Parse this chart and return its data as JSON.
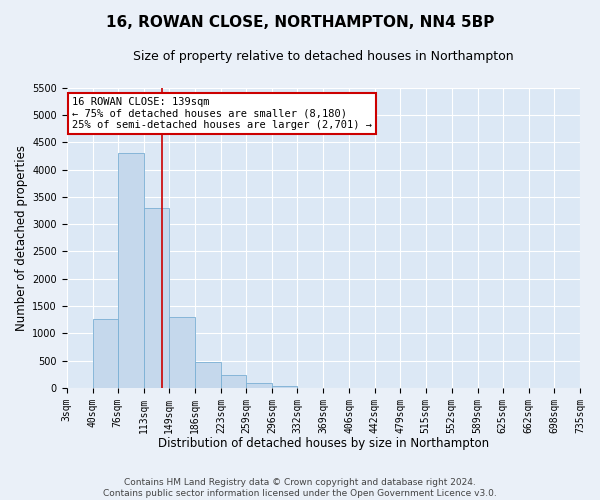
{
  "title": "16, ROWAN CLOSE, NORTHAMPTON, NN4 5BP",
  "subtitle": "Size of property relative to detached houses in Northampton",
  "xlabel": "Distribution of detached houses by size in Northampton",
  "ylabel": "Number of detached properties",
  "bin_labels": [
    "3sqm",
    "40sqm",
    "76sqm",
    "113sqm",
    "149sqm",
    "186sqm",
    "223sqm",
    "259sqm",
    "296sqm",
    "332sqm",
    "369sqm",
    "406sqm",
    "442sqm",
    "479sqm",
    "515sqm",
    "552sqm",
    "589sqm",
    "625sqm",
    "662sqm",
    "698sqm",
    "735sqm"
  ],
  "bar_values": [
    0,
    1270,
    4300,
    3290,
    1300,
    480,
    230,
    80,
    40,
    0,
    0,
    0,
    0,
    0,
    0,
    0,
    0,
    0,
    0,
    0
  ],
  "bin_edges": [
    3,
    40,
    76,
    113,
    149,
    186,
    223,
    259,
    296,
    332,
    369,
    406,
    442,
    479,
    515,
    552,
    589,
    625,
    662,
    698,
    735
  ],
  "bar_color": "#c5d8ec",
  "bar_edge_color": "#7aafd4",
  "vline_x": 139,
  "vline_color": "#cc0000",
  "annotation_title": "16 ROWAN CLOSE: 139sqm",
  "annotation_line1": "← 75% of detached houses are smaller (8,180)",
  "annotation_line2": "25% of semi-detached houses are larger (2,701) →",
  "annotation_box_color": "#cc0000",
  "ylim": [
    0,
    5500
  ],
  "yticks": [
    0,
    500,
    1000,
    1500,
    2000,
    2500,
    3000,
    3500,
    4000,
    4500,
    5000,
    5500
  ],
  "footnote1": "Contains HM Land Registry data © Crown copyright and database right 2024.",
  "footnote2": "Contains public sector information licensed under the Open Government Licence v3.0.",
  "bg_color": "#eaf0f8",
  "plot_bg_color": "#dce8f5",
  "grid_color": "#ffffff",
  "title_fontsize": 11,
  "subtitle_fontsize": 9,
  "axis_label_fontsize": 8.5,
  "tick_fontsize": 7,
  "annotation_fontsize": 7.5,
  "footnote_fontsize": 6.5
}
